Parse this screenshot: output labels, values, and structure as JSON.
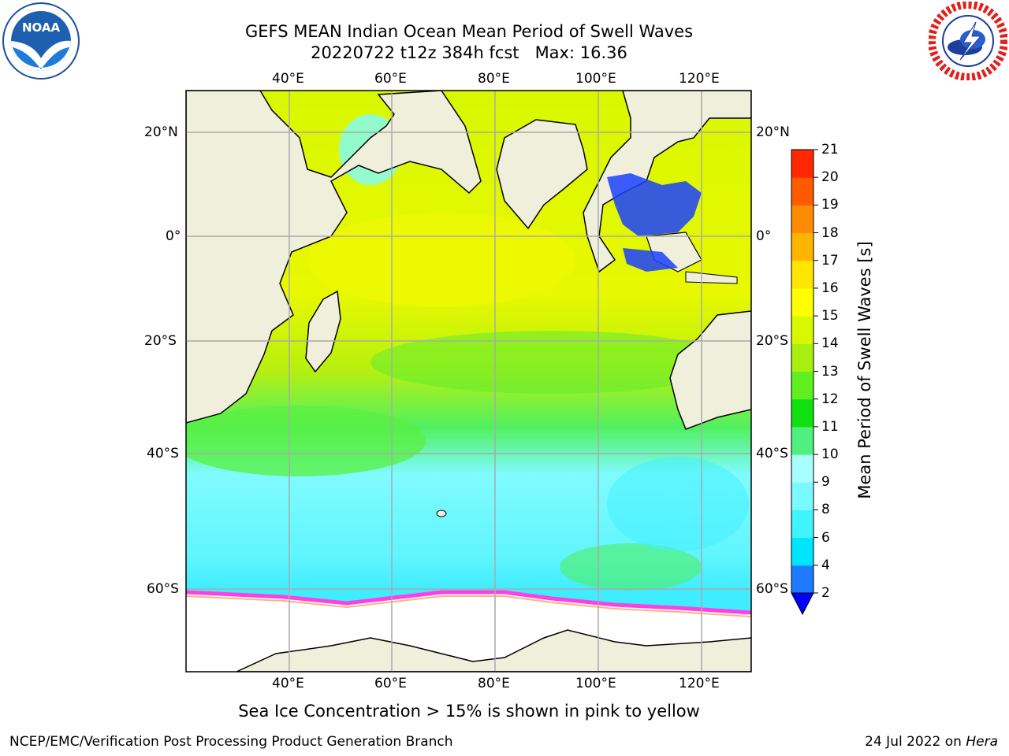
{
  "header": {
    "title": "GEFS MEAN Indian Ocean Mean Period of Swell Waves",
    "subtitle": "20220722 t12z 384h fcst   Max: 16.36"
  },
  "logos": {
    "left": {
      "name": "noaa-logo",
      "text": "NOAA"
    },
    "right": {
      "name": "nws-logo"
    }
  },
  "map": {
    "lon_labels": [
      "40°E",
      "60°E",
      "80°E",
      "100°E",
      "120°E"
    ],
    "lat_labels": [
      "20°N",
      "0°",
      "20°S",
      "40°S",
      "60°S"
    ]
  },
  "colorbar": {
    "title": "Mean Period of Swell Waves [s]",
    "ticks": [
      "2",
      "4",
      "6",
      "8",
      "9",
      "10",
      "11",
      "12",
      "13",
      "14",
      "15",
      "16",
      "17",
      "18",
      "19",
      "20",
      "21"
    ],
    "colors": [
      "#1e7bff",
      "#00e5ff",
      "#3ff3ff",
      "#7afaff",
      "#a8ffff",
      "#50f080",
      "#10e010",
      "#60f020",
      "#a8f010",
      "#d8f800",
      "#ffff00",
      "#ffe600",
      "#ffb400",
      "#ff8c00",
      "#ff5a00",
      "#ff2800"
    ],
    "extend_color": "#0000ff"
  },
  "footer": {
    "note": "Sea Ice Concentration > 15% is shown in pink to yellow",
    "left": "NCEP/EMC/Verification Post Processing Product Generation Branch",
    "right_date": "24 Jul 2022 on ",
    "right_host": "Hera"
  }
}
